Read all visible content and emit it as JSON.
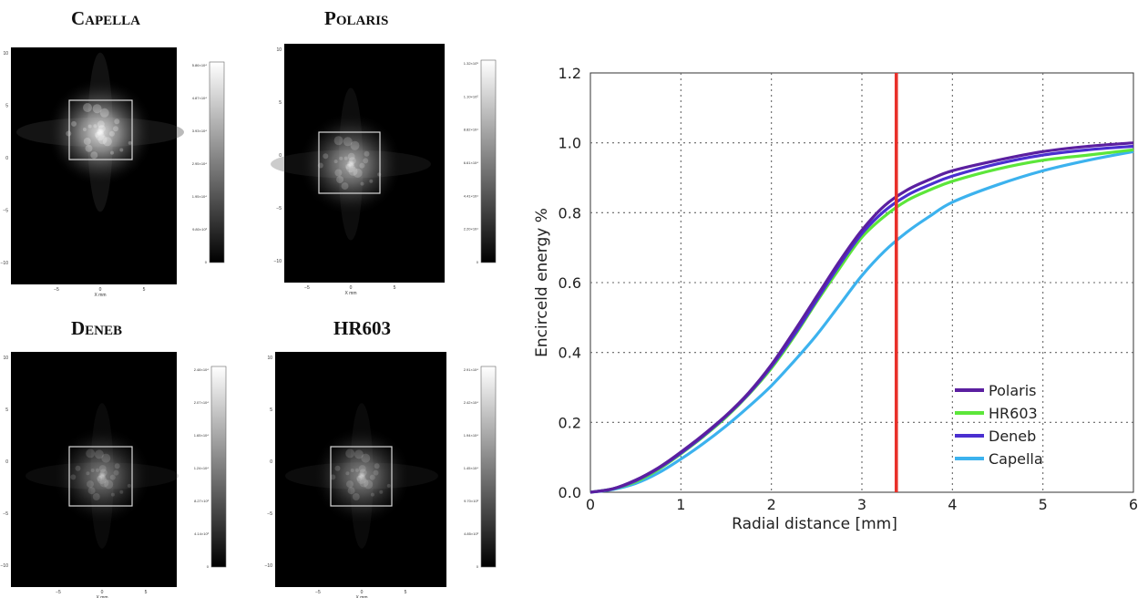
{
  "panels": [
    {
      "title": "Capella",
      "y_ticks": [
        "10",
        "5",
        "0",
        "−5",
        "−10"
      ],
      "x_ticks": [
        "−5",
        "0",
        "5"
      ],
      "x_label": "X mm",
      "cbar_labels": [
        "5.86×10⁴",
        "4.87×10⁴",
        "3.93×10⁴",
        "2.95×10⁴",
        "1.95×10⁴",
        "9.80×10³",
        "0"
      ]
    },
    {
      "title": "Polaris",
      "y_ticks": [
        "10",
        "5",
        "0",
        "−5",
        "−10"
      ],
      "x_ticks": [
        "−5",
        "0",
        "5"
      ],
      "x_label": "X mm",
      "cbar_labels": [
        "1.32×10⁵",
        "1.10×10⁵",
        "8.82×10⁴",
        "6.61×10⁴",
        "4.41×10⁴",
        "2.20×10⁴",
        "0"
      ]
    },
    {
      "title": "Deneb",
      "y_ticks": [
        "10",
        "5",
        "0",
        "−5",
        "−10"
      ],
      "x_ticks": [
        "−5",
        "0",
        "5"
      ],
      "x_label": "X mm",
      "cbar_labels": [
        "2.48×10⁴",
        "2.07×10⁴",
        "1.65×10⁴",
        "1.24×10⁴",
        "8.27×10³",
        "4.14×10³",
        "0"
      ]
    },
    {
      "title": "HR603",
      "y_ticks": [
        "10",
        "5",
        "0",
        "−5",
        "−10"
      ],
      "x_ticks": [
        "−5",
        "0",
        "5"
      ],
      "x_label": "X mm",
      "cbar_labels": [
        "2.91×10⁴",
        "2.42×10⁴",
        "1.94×10⁴",
        "1.45×10⁴",
        "9.70×10³",
        "4.85×10³",
        "0"
      ]
    }
  ],
  "chart_data": {
    "type": "line",
    "title": "",
    "xlabel": "Radial distance [mm]",
    "ylabel": "Encirceld energy %",
    "xlim": [
      0,
      6
    ],
    "ylim": [
      0,
      1.2
    ],
    "x_ticks": [
      "0",
      "1",
      "2",
      "3",
      "4",
      "5",
      "6"
    ],
    "y_ticks": [
      "0.0",
      "0.2",
      "0.4",
      "0.6",
      "0.8",
      "1.0",
      "1.2"
    ],
    "grid": true,
    "legend_position": "bottom-right",
    "vline": {
      "x": 3.38,
      "color": "#e8302a"
    },
    "x": [
      0,
      0.25,
      0.5,
      0.75,
      1,
      1.25,
      1.5,
      1.75,
      2,
      2.25,
      2.5,
      2.75,
      3,
      3.25,
      3.5,
      3.75,
      4,
      4.5,
      5,
      5.5,
      6
    ],
    "series": [
      {
        "name": "Polaris",
        "color": "#5b1fa0",
        "values": [
          0,
          0.01,
          0.035,
          0.07,
          0.115,
          0.165,
          0.22,
          0.285,
          0.365,
          0.46,
          0.56,
          0.66,
          0.75,
          0.82,
          0.865,
          0.895,
          0.92,
          0.95,
          0.975,
          0.99,
          1.0
        ]
      },
      {
        "name": "HR603",
        "color": "#5ce63a",
        "values": [
          0,
          0.01,
          0.03,
          0.065,
          0.11,
          0.16,
          0.215,
          0.28,
          0.355,
          0.445,
          0.545,
          0.64,
          0.73,
          0.79,
          0.835,
          0.865,
          0.89,
          0.925,
          0.95,
          0.965,
          0.98
        ]
      },
      {
        "name": "Deneb",
        "color": "#4a2fd0",
        "values": [
          0,
          0.01,
          0.033,
          0.068,
          0.112,
          0.162,
          0.218,
          0.282,
          0.36,
          0.45,
          0.55,
          0.65,
          0.74,
          0.805,
          0.85,
          0.88,
          0.905,
          0.94,
          0.965,
          0.98,
          0.99
        ]
      },
      {
        "name": "Capella",
        "color": "#3cb2ee",
        "values": [
          0,
          0.008,
          0.025,
          0.055,
          0.095,
          0.14,
          0.19,
          0.245,
          0.305,
          0.375,
          0.45,
          0.535,
          0.62,
          0.69,
          0.745,
          0.79,
          0.83,
          0.88,
          0.92,
          0.95,
          0.975
        ]
      }
    ]
  }
}
